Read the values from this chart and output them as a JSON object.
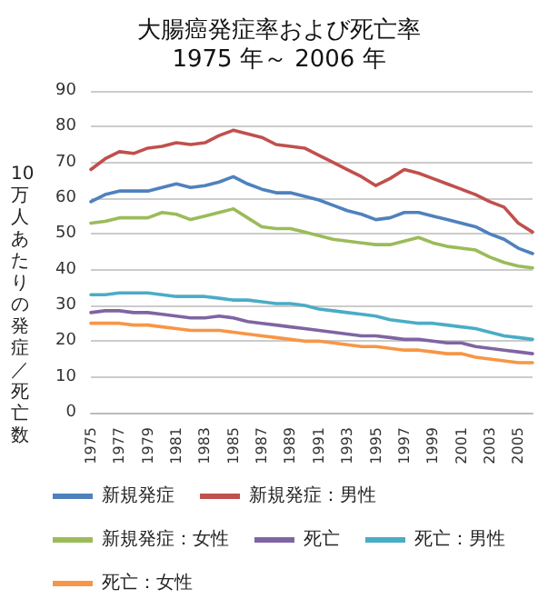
{
  "chart_data": {
    "type": "line",
    "title": "大腸癌発症率および死亡率\n1975 年～ 2006 年",
    "ylabel": "10万人あたりの発症／死亡数",
    "categories": [
      "1975",
      null,
      "1977",
      null,
      "1979",
      null,
      "1981",
      null,
      "1983",
      null,
      "1985",
      null,
      "1987",
      null,
      "1989",
      null,
      "1991",
      null,
      "1993",
      null,
      "1995",
      null,
      "1997",
      null,
      "1999",
      null,
      "2001",
      null,
      "2003",
      null,
      "2005",
      null
    ],
    "series": [
      {
        "name": "新規発症",
        "color": "#4f81bd",
        "values": [
          59,
          61,
          62,
          62,
          62,
          63,
          64,
          63,
          63.5,
          64.5,
          66,
          64,
          62.5,
          61.5,
          61.5,
          60.5,
          59.5,
          58,
          56.5,
          55.5,
          54,
          54.5,
          56,
          56,
          55,
          54,
          53,
          52,
          50,
          48.5,
          46,
          44.5
        ]
      },
      {
        "name": "新規発症：男性",
        "color": "#c0504d",
        "values": [
          68,
          71,
          73,
          72.5,
          74,
          74.5,
          75.5,
          75,
          75.5,
          77.5,
          79,
          78,
          77,
          75,
          74.5,
          74,
          72,
          70,
          68,
          66,
          63.5,
          65.5,
          68,
          67,
          65.5,
          64,
          62.5,
          61,
          59,
          57.5,
          53,
          50.5
        ]
      },
      {
        "name": "新規発症：女性",
        "color": "#9bbb59",
        "values": [
          53,
          53.5,
          54.5,
          54.5,
          54.5,
          56,
          55.5,
          54,
          55,
          56,
          57,
          54.5,
          52,
          51.5,
          51.5,
          50.5,
          49.5,
          48.5,
          48,
          47.5,
          47,
          47,
          48,
          49,
          47.5,
          46.5,
          46,
          45.5,
          43.5,
          42,
          41,
          40.5
        ]
      },
      {
        "name": "死亡",
        "color": "#8064a2",
        "values": [
          28,
          28.5,
          28.5,
          28,
          28,
          27.5,
          27,
          26.5,
          26.5,
          27,
          26.5,
          25.5,
          25,
          24.5,
          24,
          23.5,
          23,
          22.5,
          22,
          21.5,
          21.5,
          21,
          20.5,
          20.5,
          20,
          19.5,
          19.5,
          18.5,
          18,
          17.5,
          17,
          16.5
        ]
      },
      {
        "name": "死亡：男性",
        "color": "#4bacc6",
        "values": [
          33,
          33,
          33.5,
          33.5,
          33.5,
          33,
          32.5,
          32.5,
          32.5,
          32,
          31.5,
          31.5,
          31,
          30.5,
          30.5,
          30,
          29,
          28.5,
          28,
          27.5,
          27,
          26,
          25.5,
          25,
          25,
          24.5,
          24,
          23.5,
          22.5,
          21.5,
          21,
          20.5
        ]
      },
      {
        "name": "死亡：女性",
        "color": "#f79646",
        "values": [
          25,
          25,
          25,
          24.5,
          24.5,
          24,
          23.5,
          23,
          23,
          23,
          22.5,
          22,
          21.5,
          21,
          20.5,
          20,
          20,
          19.5,
          19,
          18.5,
          18.5,
          18,
          17.5,
          17.5,
          17,
          16.5,
          16.5,
          15.5,
          15,
          14.5,
          14,
          14
        ]
      }
    ],
    "ylim": [
      0,
      90
    ],
    "yticks": [
      0,
      10,
      20,
      30,
      40,
      50,
      60,
      70,
      80,
      90
    ],
    "grid": "y",
    "legend": "bottom",
    "marker": "none",
    "line_style": "solid"
  }
}
